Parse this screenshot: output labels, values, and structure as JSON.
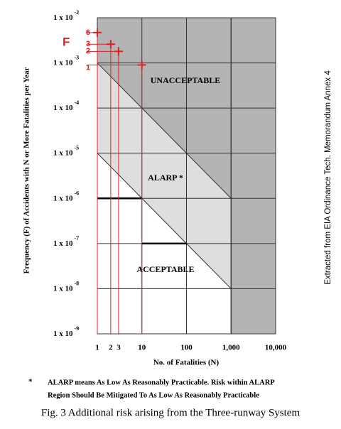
{
  "chart_data": {
    "type": "scatter",
    "y_label": "Frequency (F) of Accidents with N or More Fatalities per Year",
    "x_label": "No. of Fatalities (N)",
    "f_marker": "F",
    "side_note": "Extracted from EIA Ordinance Tech. Memorandum Annex 4",
    "footnote_mark": "*",
    "footnote": [
      "ALARP means As Low As Reasonably Practicable. Risk within ALARP",
      "Region Should Be Mitigated To As Low As Reasonably Practicable"
    ],
    "caption": "Fig. 3 Additional risk arising from the Three-runway System",
    "log_x": true,
    "log_y": true,
    "grid": true,
    "xlim": [
      1,
      10000
    ],
    "ylim": [
      1e-09,
      0.01
    ],
    "xticks": [
      1,
      2,
      3,
      10,
      100,
      {
        "value": 1000,
        "label": "1,000"
      },
      {
        "value": 10000,
        "label": "10,000"
      }
    ],
    "yticks": [
      {
        "value": 0.01,
        "label": "1 x 10",
        "exponent": "-2"
      },
      {
        "value": 0.001,
        "label": "1 x 10",
        "exponent": "-3"
      },
      {
        "value": 0.0001,
        "label": "1 x 10",
        "exponent": "-4"
      },
      {
        "value": 1e-05,
        "label": "1 x 10",
        "exponent": "-5"
      },
      {
        "value": 1e-06,
        "label": "1 x 10",
        "exponent": "-6"
      },
      {
        "value": 1e-07,
        "label": "1 x 10",
        "exponent": "-7"
      },
      {
        "value": 1e-08,
        "label": "1 x 10",
        "exponent": "-8"
      },
      {
        "value": 1e-09,
        "label": "1 x 10",
        "exponent": "-9"
      }
    ],
    "unacceptable_line": {
      "x": [
        1,
        1000
      ],
      "y": [
        0.001,
        1e-06
      ]
    },
    "acceptable_line": {
      "x": [
        1,
        1000
      ],
      "y": [
        1e-05,
        1e-08
      ]
    },
    "n_limit": 1000,
    "bold_lines": [
      {
        "x": [
          1,
          10
        ],
        "y": [
          1e-06,
          1e-06
        ]
      },
      {
        "x": [
          10,
          100
        ],
        "y": [
          1e-07,
          1e-07
        ]
      }
    ],
    "regions": [
      {
        "label": "UNACCEPTABLE",
        "color": "#b4b4b4"
      },
      {
        "label": "ALARP *",
        "color": "#dedede"
      },
      {
        "label": "ACCEPTABLE",
        "color": "#ffffff"
      }
    ],
    "series": [
      {
        "color": "#e02020",
        "labels": [
          "6",
          "3",
          "2",
          "1"
        ],
        "x": [
          1,
          2,
          3,
          10
        ],
        "values": [
          0.0047,
          0.0026,
          0.0018,
          0.0009
        ]
      }
    ]
  }
}
